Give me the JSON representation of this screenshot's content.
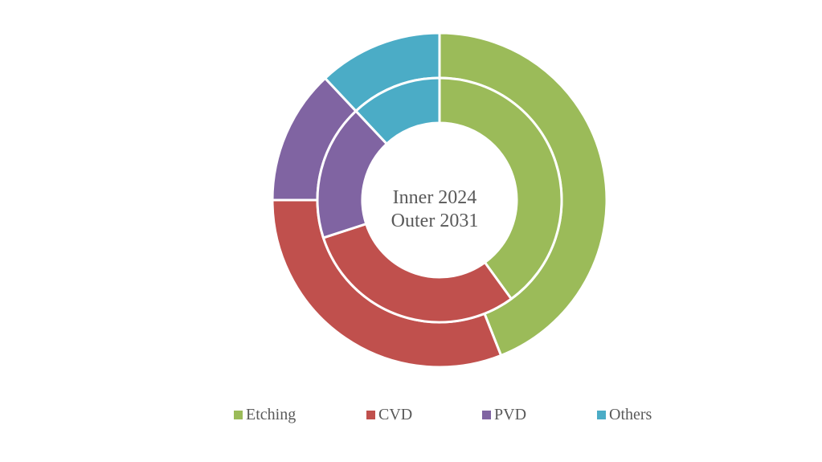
{
  "chart_data": {
    "type": "pie",
    "subtype": "nested-donut",
    "center_label": {
      "line1": "Inner 2024",
      "line2": "Outer 2031"
    },
    "categories": [
      "Etching",
      "CVD",
      "PVD",
      "Others"
    ],
    "colors": [
      "#9BBB59",
      "#C0504D",
      "#8064A2",
      "#4BACC6"
    ],
    "series": [
      {
        "ring": "inner",
        "values": [
          40,
          30,
          18,
          12
        ]
      },
      {
        "ring": "outer",
        "values": [
          44,
          31,
          13,
          12
        ]
      }
    ],
    "legend_position": "bottom"
  }
}
